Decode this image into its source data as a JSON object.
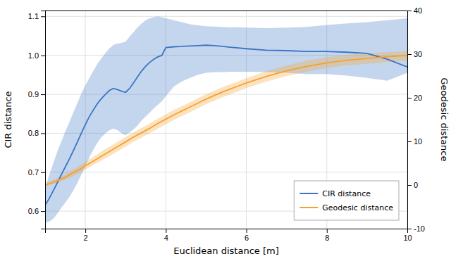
{
  "chart_data": {
    "type": "line",
    "xlabel": "Euclidean distance [m]",
    "ylabel": "CIR distance",
    "y2label": "Geodesic distance",
    "xlim": [
      1,
      10
    ],
    "xticks": [
      2,
      4,
      6,
      8,
      10
    ],
    "ylim": [
      0.555,
      1.115
    ],
    "yticks": [
      0.6,
      0.7,
      0.8,
      0.9,
      {
        "value": 1.0,
        "label": "1.0"
      },
      1.1
    ],
    "y2lim": [
      -10,
      40
    ],
    "y2ticks": [
      -10,
      0,
      10,
      20,
      30,
      40
    ],
    "grid": true,
    "legend": "lower right",
    "series": [
      {
        "name": "CIR distance",
        "color": "#3a76c4",
        "axis": "y",
        "x": [
          1.0,
          1.1,
          1.2,
          1.3,
          1.4,
          1.5,
          1.6,
          1.7,
          1.8,
          1.9,
          2.0,
          2.1,
          2.2,
          2.3,
          2.4,
          2.5,
          2.6,
          2.7,
          2.8,
          2.9,
          3.0,
          3.1,
          3.2,
          3.3,
          3.4,
          3.5,
          3.6,
          3.7,
          3.8,
          3.9,
          4.0,
          4.2,
          4.4,
          4.6,
          4.8,
          5.0,
          5.2,
          5.4,
          5.6,
          5.8,
          6.0,
          6.5,
          7.0,
          7.5,
          8.0,
          8.5,
          9.0,
          9.5,
          10.0
        ],
        "values": [
          0.615,
          0.632,
          0.652,
          0.672,
          0.693,
          0.713,
          0.733,
          0.755,
          0.777,
          0.8,
          0.822,
          0.843,
          0.86,
          0.876,
          0.889,
          0.9,
          0.91,
          0.915,
          0.912,
          0.908,
          0.905,
          0.915,
          0.93,
          0.945,
          0.96,
          0.972,
          0.982,
          0.99,
          0.996,
          1.0,
          1.02,
          1.022,
          1.023,
          1.024,
          1.025,
          1.026,
          1.025,
          1.023,
          1.021,
          1.019,
          1.017,
          1.013,
          1.012,
          1.01,
          1.01,
          1.008,
          1.005,
          0.99,
          0.97
        ],
        "upper": [
          0.66,
          0.692,
          0.722,
          0.752,
          0.778,
          0.804,
          0.828,
          0.853,
          0.877,
          0.902,
          0.923,
          0.942,
          0.96,
          0.978,
          0.992,
          1.006,
          1.018,
          1.027,
          1.03,
          1.032,
          1.035,
          1.048,
          1.06,
          1.072,
          1.082,
          1.09,
          1.095,
          1.098,
          1.1,
          1.098,
          1.095,
          1.09,
          1.085,
          1.08,
          1.077,
          1.075,
          1.074,
          1.073,
          1.072,
          1.072,
          1.071,
          1.07,
          1.071,
          1.073,
          1.078,
          1.082,
          1.085,
          1.09,
          1.095
        ],
        "lower": [
          0.57,
          0.573,
          0.58,
          0.593,
          0.608,
          0.622,
          0.636,
          0.653,
          0.672,
          0.693,
          0.715,
          0.738,
          0.758,
          0.776,
          0.79,
          0.8,
          0.808,
          0.812,
          0.808,
          0.8,
          0.795,
          0.802,
          0.81,
          0.82,
          0.833,
          0.843,
          0.853,
          0.864,
          0.873,
          0.882,
          0.895,
          0.92,
          0.933,
          0.942,
          0.95,
          0.955,
          0.957,
          0.957,
          0.958,
          0.958,
          0.958,
          0.957,
          0.955,
          0.952,
          0.952,
          0.948,
          0.942,
          0.935,
          0.955
        ]
      },
      {
        "name": "Geodesic distance",
        "color": "#f5a12e",
        "axis": "y2",
        "x": [
          1.0,
          1.1,
          1.2,
          1.3,
          1.4,
          1.5,
          1.6,
          1.7,
          1.8,
          1.9,
          2.0,
          2.2,
          2.4,
          2.6,
          2.8,
          3.0,
          3.2,
          3.4,
          3.6,
          3.8,
          4.0,
          4.2,
          4.4,
          4.6,
          4.8,
          5.0,
          5.2,
          5.4,
          5.6,
          5.8,
          6.0,
          6.5,
          7.0,
          7.5,
          8.0,
          8.5,
          9.0,
          9.5,
          10.0
        ],
        "values": [
          0.0,
          0.3,
          0.6,
          1.0,
          1.4,
          1.8,
          2.3,
          2.8,
          3.3,
          3.8,
          4.4,
          5.5,
          6.6,
          7.7,
          8.8,
          9.9,
          11.0,
          12.0,
          13.0,
          14.1,
          15.1,
          16.1,
          17.0,
          17.9,
          18.8,
          19.7,
          20.5,
          21.3,
          22.0,
          22.7,
          23.4,
          24.9,
          26.2,
          27.2,
          28.0,
          28.6,
          29.0,
          29.4,
          29.7
        ],
        "upper": [
          0.5,
          0.8,
          1.2,
          1.6,
          2.0,
          2.5,
          3.0,
          3.6,
          4.1,
          4.7,
          5.3,
          6.5,
          7.7,
          8.8,
          9.9,
          11.0,
          12.1,
          13.1,
          14.1,
          15.2,
          16.2,
          17.2,
          18.1,
          19.0,
          19.9,
          20.8,
          21.6,
          22.4,
          23.1,
          23.8,
          24.5,
          26.1,
          27.4,
          28.5,
          29.3,
          29.8,
          30.2,
          30.5,
          30.7
        ],
        "lower": [
          -0.4,
          -0.1,
          0.2,
          0.5,
          0.9,
          1.2,
          1.6,
          2.0,
          2.5,
          3.0,
          3.5,
          4.6,
          5.6,
          6.6,
          7.7,
          8.8,
          9.9,
          10.9,
          11.9,
          12.9,
          13.9,
          14.9,
          15.8,
          16.7,
          17.6,
          18.5,
          19.3,
          20.1,
          20.8,
          21.5,
          22.2,
          23.7,
          25.0,
          26.0,
          26.8,
          27.4,
          27.8,
          28.2,
          28.5
        ]
      }
    ]
  }
}
